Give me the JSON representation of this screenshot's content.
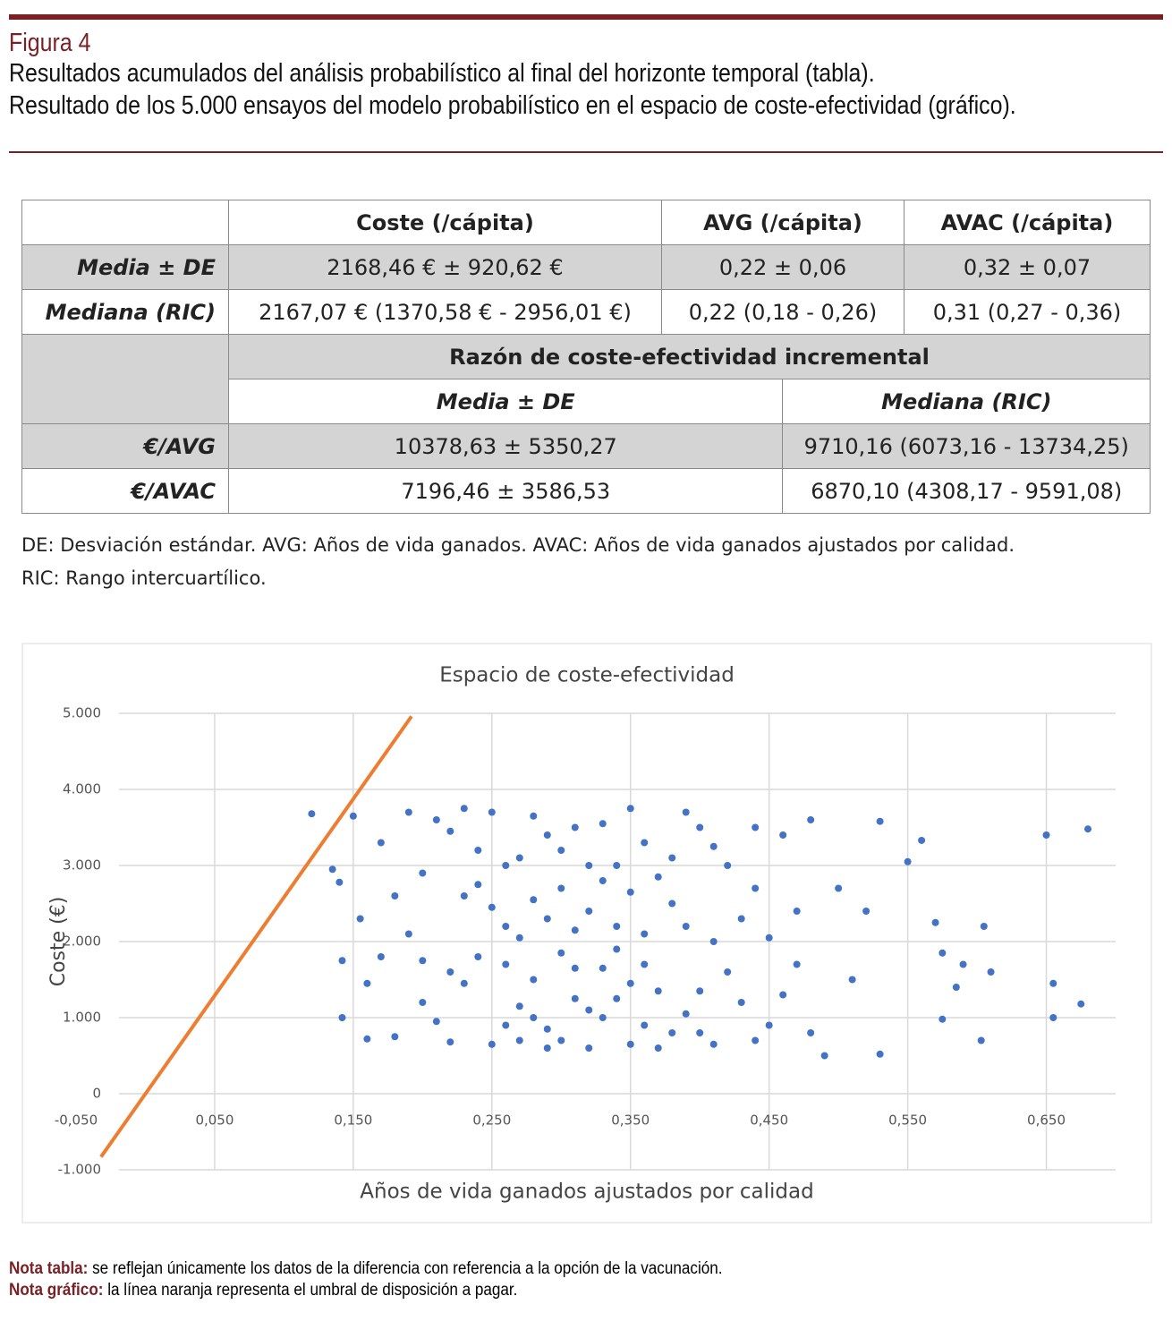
{
  "header": {
    "figure": "Figura 4",
    "lines": [
      "Resultados acumulados del análisis probabilístico al final del horizonte temporal (tabla).",
      "Resultado de los 5.000 ensayos del modelo probabilístico en el espacio de coste-efectividad (gráfico)."
    ]
  },
  "table": {
    "columns": [
      "Coste (/cápita)",
      "AVG (/cápita)",
      "AVAC (/cápita)"
    ],
    "rows": [
      {
        "label": "Media ± DE",
        "values": [
          "2168,46 € ± 920,62 €",
          "0,22 ± 0,06",
          "0,32 ± 0,07"
        ]
      },
      {
        "label": "Mediana (RIC)",
        "values": [
          "2167,07 € (1370,58 € - 2956,01 €)",
          "0,22 (0,18 - 0,26)",
          "0,31 (0,27 - 0,36)"
        ]
      }
    ],
    "icer": {
      "title": "Razón de coste-efectividad incremental",
      "columns": [
        "Media ± DE",
        "Mediana (RIC)"
      ],
      "rows": [
        {
          "label": "€/AVG",
          "values": [
            "10378,63 ± 5350,27",
            "9710,16 (6073,16 - 13734,25)"
          ]
        },
        {
          "label": "€/AVAC",
          "values": [
            "7196,46 ± 3586,53",
            "6870,10 (4308,17 - 9591,08)"
          ]
        }
      ]
    },
    "footnotes": [
      "DE: Desviación estándar. AVG: Años de vida ganados. AVAC: Años de vida ganados ajustados por calidad.",
      "RIC: Rango intercuartílico."
    ]
  },
  "chart_data": {
    "type": "scatter",
    "title": "Espacio de coste-efectividad",
    "x_label": "Años de vida ganados ajustados por calidad",
    "y_label": "Coste (€)",
    "xlim": [
      -0.05,
      0.7
    ],
    "ylim": [
      -1000,
      5000
    ],
    "xticks": [
      {
        "value": -0.05,
        "label": "-0,050"
      },
      {
        "value": 0.05,
        "label": "0,050"
      },
      {
        "value": 0.15,
        "label": "0,150"
      },
      {
        "value": 0.25,
        "label": "0,250"
      },
      {
        "value": 0.35,
        "label": "0,350"
      },
      {
        "value": 0.45,
        "label": "0,450"
      },
      {
        "value": 0.55,
        "label": "0,550"
      },
      {
        "value": 0.65,
        "label": "0,650"
      }
    ],
    "yticks": [
      {
        "value": -1000,
        "label": "-1.000"
      },
      0,
      {
        "value": 1000,
        "label": "1.000"
      },
      {
        "value": 2000,
        "label": "2.000"
      },
      {
        "value": 3000,
        "label": "3.000"
      },
      {
        "value": 4000,
        "label": "4.000"
      },
      {
        "value": 5000,
        "label": "5.000"
      }
    ],
    "grid": true,
    "points": {
      "color": "#4472c4",
      "x": [
        0.18,
        0.19,
        0.17,
        0.2,
        0.21,
        0.22,
        0.23,
        0.24,
        0.25,
        0.26,
        0.27,
        0.28,
        0.29,
        0.3,
        0.31,
        0.32,
        0.33,
        0.34,
        0.35,
        0.36,
        0.37,
        0.38,
        0.39,
        0.4,
        0.41,
        0.42,
        0.43,
        0.44,
        0.45,
        0.46,
        0.47,
        0.2,
        0.22,
        0.24,
        0.26,
        0.28,
        0.3,
        0.32,
        0.34,
        0.36,
        0.38,
        0.4,
        0.42,
        0.44,
        0.19,
        0.21,
        0.23,
        0.25,
        0.27,
        0.29,
        0.31,
        0.33,
        0.35,
        0.37,
        0.39,
        0.41,
        0.43,
        0.25,
        0.27,
        0.29,
        0.31,
        0.33,
        0.35,
        0.37,
        0.39,
        0.28,
        0.3,
        0.32,
        0.34,
        0.36,
        0.26,
        0.24,
        0.22,
        0.3,
        0.33,
        0.35,
        0.31,
        0.28,
        0.26,
        0.38,
        0.4,
        0.17,
        0.18,
        0.16,
        0.45,
        0.46,
        0.47,
        0.44,
        0.48,
        0.2,
        0.23,
        0.32,
        0.34,
        0.29,
        0.36,
        0.41,
        0.27,
        0.12,
        0.135,
        0.14,
        0.142,
        0.142,
        0.15,
        0.155,
        0.16,
        0.53,
        0.55,
        0.56,
        0.57,
        0.575,
        0.575,
        0.59,
        0.585,
        0.605,
        0.61,
        0.603,
        0.65,
        0.68,
        0.655,
        0.655,
        0.675,
        0.53,
        0.49,
        0.51,
        0.52,
        0.5,
        0.48
      ],
      "y": [
        750,
        2100,
        3300,
        1200,
        3600,
        680,
        2600,
        1800,
        3700,
        900,
        3100,
        1500,
        2300,
        700,
        3500,
        1100,
        2800,
        1900,
        650,
        3300,
        1350,
        2500,
        3700,
        800,
        2000,
        3000,
        1200,
        2700,
        900,
        3400,
        1700,
        2900,
        1600,
        3200,
        2200,
        3650,
        2700,
        600,
        3000,
        2100,
        800,
        3500,
        1600,
        700,
        3700,
        950,
        1450,
        650,
        2050,
        3400,
        1250,
        1650,
        3750,
        2850,
        1050,
        3250,
        2300,
        2450,
        1150,
        850,
        2150,
        3550,
        1450,
        600,
        2200,
        2550,
        1850,
        3000,
        1250,
        900,
        1700,
        2750,
        3450,
        3200,
        1000,
        2650,
        1650,
        1000,
        3000,
        3100,
        1350,
        1800,
        2600,
        720,
        2050,
        1300,
        2400,
        3500,
        800,
        1750,
        3750,
        2400,
        2200,
        600,
        1700,
        650,
        700,
        3680,
        2950,
        2780,
        1750,
        1000,
        3650,
        2300,
        1450,
        3580,
        3050,
        3330,
        2250,
        1850,
        980,
        1700,
        1400,
        2200,
        1600,
        700,
        3400,
        3480,
        1450,
        1000,
        1180,
        520,
        500,
        1500,
        2400,
        2700,
        3600
      ]
    },
    "threshold": {
      "color": "#ed7d31",
      "x": [
        -0.032,
        0.192
      ],
      "y": [
        -830,
        4960
      ]
    }
  },
  "notes": [
    {
      "label": "Nota tabla:",
      "text": "se reflejan únicamente los datos de la diferencia con referencia a la opción de la vacunación."
    },
    {
      "label": "Nota gráfico:",
      "text": "la línea naranja representa el umbral de disposición a pagar."
    }
  ]
}
